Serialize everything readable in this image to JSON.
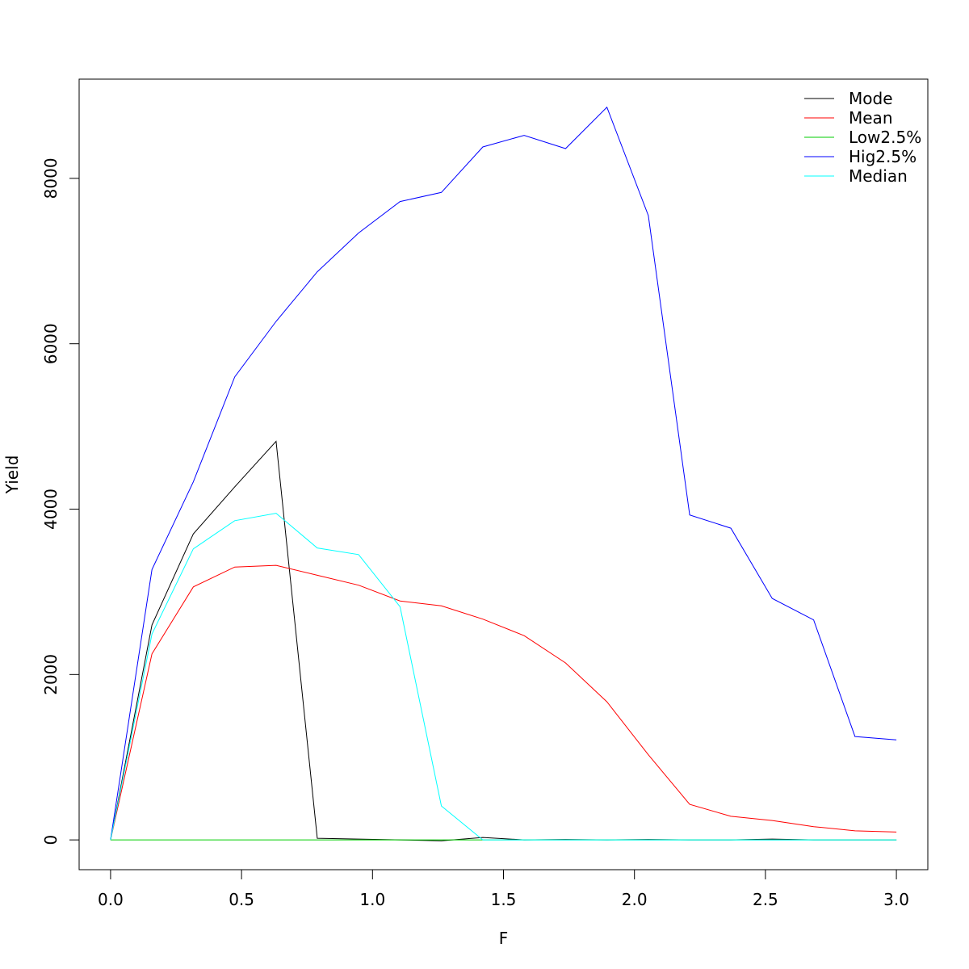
{
  "chart_data": {
    "type": "line",
    "title": "",
    "xlabel": "F",
    "ylabel": "Yield",
    "xlim": [
      -0.12,
      3.12
    ],
    "ylim": [
      -360,
      9200
    ],
    "x_ticks": [
      0.0,
      0.5,
      1.0,
      1.5,
      2.0,
      2.5,
      3.0
    ],
    "x_tick_labels": [
      "0.0",
      "0.5",
      "1.0",
      "1.5",
      "2.0",
      "2.5",
      "3.0"
    ],
    "y_ticks": [
      0,
      2000,
      4000,
      6000,
      8000
    ],
    "y_tick_labels": [
      "0",
      "2000",
      "4000",
      "6000",
      "8000"
    ],
    "grid": false,
    "legend_position": "top-right",
    "x": [
      0.0,
      0.158,
      0.316,
      0.474,
      0.632,
      0.789,
      0.947,
      1.105,
      1.263,
      1.421,
      1.579,
      1.737,
      1.895,
      2.053,
      2.211,
      2.368,
      2.526,
      2.684,
      2.842,
      3.0
    ],
    "series": [
      {
        "name": "Mode",
        "color": "#000000",
        "values": [
          0,
          2600,
          3700,
          4270,
          4820,
          20,
          10,
          0,
          -10,
          30,
          0,
          5,
          0,
          5,
          0,
          0,
          10,
          0,
          0,
          0
        ]
      },
      {
        "name": "Mean",
        "color": "#ff0000",
        "values": [
          0,
          2250,
          3060,
          3300,
          3320,
          3200,
          3080,
          2890,
          2830,
          2670,
          2470,
          2140,
          1670,
          1030,
          430,
          285,
          235,
          160,
          110,
          95
        ]
      },
      {
        "name": "Low2.5%",
        "color": "#00cd00",
        "values": [
          0,
          0,
          0,
          0,
          0,
          0,
          0,
          0,
          0,
          0,
          0,
          0,
          0,
          0,
          0,
          0,
          0,
          0,
          0,
          0
        ]
      },
      {
        "name": "Hig2.5%",
        "color": "#0000ff",
        "values": [
          0,
          3270,
          4330,
          5600,
          6270,
          6870,
          7340,
          7720,
          7830,
          8380,
          8520,
          8360,
          8860,
          7550,
          3930,
          3770,
          2920,
          2660,
          1250,
          1210
        ]
      },
      {
        "name": "Median",
        "color": "#00ffff",
        "values": [
          0,
          2490,
          3520,
          3860,
          3950,
          3530,
          3450,
          2820,
          410,
          0,
          0,
          0,
          0,
          0,
          0,
          0,
          0,
          0,
          0,
          0
        ]
      }
    ]
  }
}
